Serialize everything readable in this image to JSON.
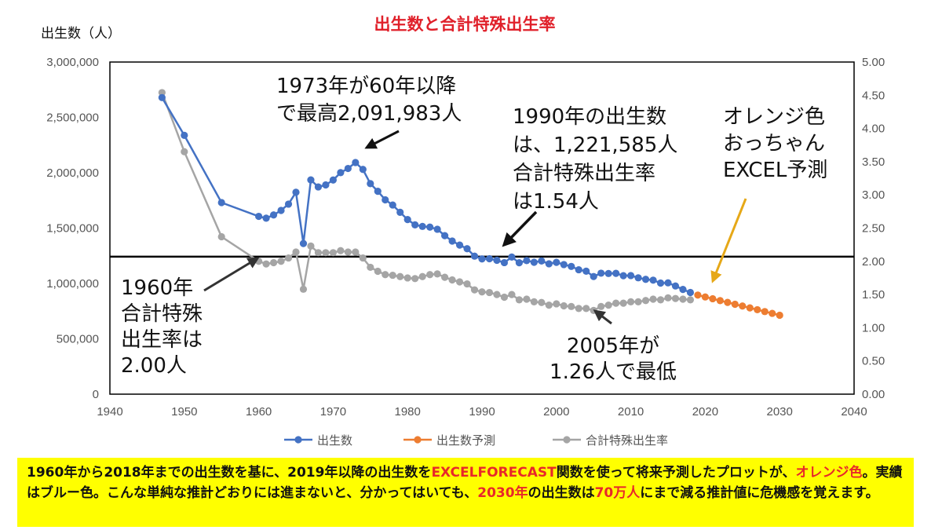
{
  "chart_data": {
    "type": "line",
    "title": "出生数と合計特殊出生率",
    "ylabel_left": "出生数（人）",
    "xlim": [
      1940,
      2040
    ],
    "x_ticks": [
      "1940",
      "1950",
      "1960",
      "1970",
      "1980",
      "1990",
      "2000",
      "2010",
      "2020",
      "2030",
      "2040"
    ],
    "ylim_left": [
      0,
      3000000
    ],
    "y_ticks_left": [
      "0",
      "500,000",
      "1,000,000",
      "1,500,000",
      "2,000,000",
      "2,500,000",
      "3,000,000"
    ],
    "ylim_right": [
      0,
      5
    ],
    "y_ticks_right": [
      "0.00",
      "0.50",
      "1.00",
      "1.50",
      "2.00",
      "2.50",
      "3.00",
      "3.50",
      "4.00",
      "4.50",
      "5.00"
    ],
    "reference_line": {
      "axis": "right",
      "value": 2.07
    },
    "legend_position": "bottom",
    "colors": {
      "births": "#4472c4",
      "forecast": "#ed7d31",
      "tfr": "#a5a5a5",
      "title": "#e0202a",
      "caption_bg": "#ffff00",
      "caption_highlight": "#e8272a",
      "arrow_orange": "#e6a817"
    },
    "series": [
      {
        "name": "出生数",
        "axis": "left",
        "x": [
          1947,
          1950,
          1955,
          1960,
          1961,
          1962,
          1963,
          1964,
          1965,
          1966,
          1967,
          1968,
          1969,
          1970,
          1971,
          1972,
          1973,
          1974,
          1975,
          1976,
          1977,
          1978,
          1979,
          1980,
          1981,
          1982,
          1983,
          1984,
          1985,
          1986,
          1987,
          1988,
          1989,
          1990,
          1991,
          1992,
          1993,
          1994,
          1995,
          1996,
          1997,
          1998,
          1999,
          2000,
          2001,
          2002,
          2003,
          2004,
          2005,
          2006,
          2007,
          2008,
          2009,
          2010,
          2011,
          2012,
          2013,
          2014,
          2015,
          2016,
          2017,
          2018
        ],
        "values": [
          2678792,
          2337507,
          1730692,
          1606041,
          1589372,
          1618616,
          1659521,
          1716761,
          1823697,
          1360974,
          1935647,
          1871839,
          1889815,
          1934239,
          2000973,
          2038682,
          2091983,
          2029989,
          1901440,
          1832617,
          1755100,
          1708643,
          1642580,
          1576889,
          1529455,
          1515392,
          1508687,
          1489780,
          1431577,
          1382946,
          1346658,
          1314006,
          1246802,
          1221585,
          1223245,
          1208989,
          1188282,
          1238328,
          1187064,
          1206555,
          1191665,
          1203147,
          1177669,
          1190547,
          1170662,
          1153855,
          1123610,
          1110721,
          1062530,
          1092674,
          1089818,
          1091156,
          1070036,
          1071304,
          1050806,
          1037231,
          1029816,
          1003539,
          1005721,
          977242,
          946065,
          918400
        ]
      },
      {
        "name": "出生数予測",
        "axis": "left",
        "x": [
          2019,
          2020,
          2021,
          2022,
          2023,
          2024,
          2025,
          2026,
          2027,
          2028,
          2029,
          2030
        ],
        "values": [
          895000,
          878000,
          862000,
          845000,
          829000,
          812000,
          796000,
          779000,
          763000,
          746000,
          730000,
          713000
        ]
      },
      {
        "name": "合計特殊出生率",
        "axis": "right",
        "x": [
          1947,
          1950,
          1955,
          1960,
          1961,
          1962,
          1963,
          1964,
          1965,
          1966,
          1967,
          1968,
          1969,
          1970,
          1971,
          1972,
          1973,
          1974,
          1975,
          1976,
          1977,
          1978,
          1979,
          1980,
          1981,
          1982,
          1983,
          1984,
          1985,
          1986,
          1987,
          1988,
          1989,
          1990,
          1991,
          1992,
          1993,
          1994,
          1995,
          1996,
          1997,
          1998,
          1999,
          2000,
          2001,
          2002,
          2003,
          2004,
          2005,
          2006,
          2007,
          2008,
          2009,
          2010,
          2011,
          2012,
          2013,
          2014,
          2015,
          2016,
          2017,
          2018
        ],
        "values": [
          4.54,
          3.65,
          2.37,
          2.0,
          1.96,
          1.98,
          2.0,
          2.05,
          2.14,
          1.58,
          2.23,
          2.13,
          2.13,
          2.13,
          2.16,
          2.14,
          2.14,
          2.05,
          1.91,
          1.85,
          1.8,
          1.79,
          1.77,
          1.75,
          1.74,
          1.77,
          1.8,
          1.81,
          1.76,
          1.72,
          1.69,
          1.66,
          1.57,
          1.54,
          1.53,
          1.5,
          1.46,
          1.5,
          1.42,
          1.43,
          1.39,
          1.38,
          1.34,
          1.36,
          1.33,
          1.32,
          1.29,
          1.29,
          1.26,
          1.32,
          1.34,
          1.37,
          1.37,
          1.39,
          1.39,
          1.41,
          1.43,
          1.42,
          1.45,
          1.44,
          1.43,
          1.42
        ]
      }
    ],
    "annotations": [
      {
        "id": "peak",
        "lines": [
          "1973年が60年以降",
          "で最高2,091,983人"
        ]
      },
      {
        "id": "1990",
        "lines": [
          "1990年の出生数",
          "は、1,221,585人",
          "合計特殊出生率",
          "は1.54人"
        ]
      },
      {
        "id": "orange",
        "lines": [
          "オレンジ色",
          "おっちゃん",
          "EXCEL予測"
        ]
      },
      {
        "id": "1960",
        "lines": [
          "1960年",
          "合計特殊",
          "出生率は",
          "2.00人"
        ]
      },
      {
        "id": "2005",
        "lines": [
          "2005年が",
          "1.26人で最低"
        ]
      }
    ]
  },
  "caption": {
    "segments": [
      {
        "text": "1960年から2018年までの出生数を基に、2019年以降の出生数を",
        "highlight": false
      },
      {
        "text": "EXCELFORECAST",
        "highlight": true
      },
      {
        "text": "関数を使って将来予測したプロットが、",
        "highlight": false
      },
      {
        "text": "オレンジ色",
        "highlight": true
      },
      {
        "text": "。実績はブルー色。こんな単純な推計どおりには進まないと、分かってはいても、",
        "highlight": false
      },
      {
        "text": "2030年",
        "highlight": true
      },
      {
        "text": "の出生数は",
        "highlight": false
      },
      {
        "text": "70万人",
        "highlight": true
      },
      {
        "text": "にまで減る推計値に危機感を覚えます。",
        "highlight": false
      }
    ]
  }
}
